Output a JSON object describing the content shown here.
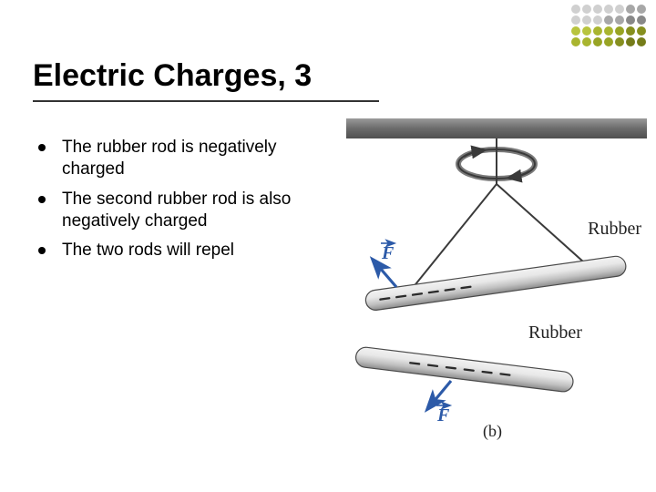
{
  "title": "Electric Charges, 3",
  "underline_color": "#333333",
  "bullets": [
    "The rubber rod is negatively charged",
    "The second rubber rod is also negatively charged",
    "The two rods will repel"
  ],
  "dotgrid": {
    "rows": 4,
    "cols": 7,
    "colors": [
      "#d0d0d0",
      "#d0d0d0",
      "#d0d0d0",
      "#d0d0d0",
      "#d0d0d0",
      "#a7a7a7",
      "#a7a7a7",
      "#d0d0d0",
      "#d0d0d0",
      "#d0d0d0",
      "#a7a7a7",
      "#a7a7a7",
      "#888888",
      "#888888",
      "#b8c43e",
      "#b8c43e",
      "#a9b52f",
      "#a9b52f",
      "#98a424",
      "#868f1f",
      "#868f1f",
      "#a9b52f",
      "#a9b52f",
      "#98a424",
      "#98a424",
      "#868f1f",
      "#757c1a",
      "#757c1a"
    ],
    "dot_size": 10,
    "gap": 1
  },
  "figure": {
    "labels": {
      "rubber_top": "Rubber",
      "rubber_bottom": "Rubber",
      "force": "F"
    },
    "caption": "(b)",
    "colors": {
      "bar_fill": "#6b6b6b",
      "bar_highlight": "#9a9a9a",
      "ring_stroke": "#3a3a3a",
      "string": "#3a3a3a",
      "rod_light": "#e8e8e8",
      "rod_mid": "#c0c0c0",
      "rod_dark": "#8c8c8c",
      "rod_edge": "#4a4a4a",
      "minus": "#2a2a2a",
      "force_color": "#2c5aa8"
    }
  }
}
